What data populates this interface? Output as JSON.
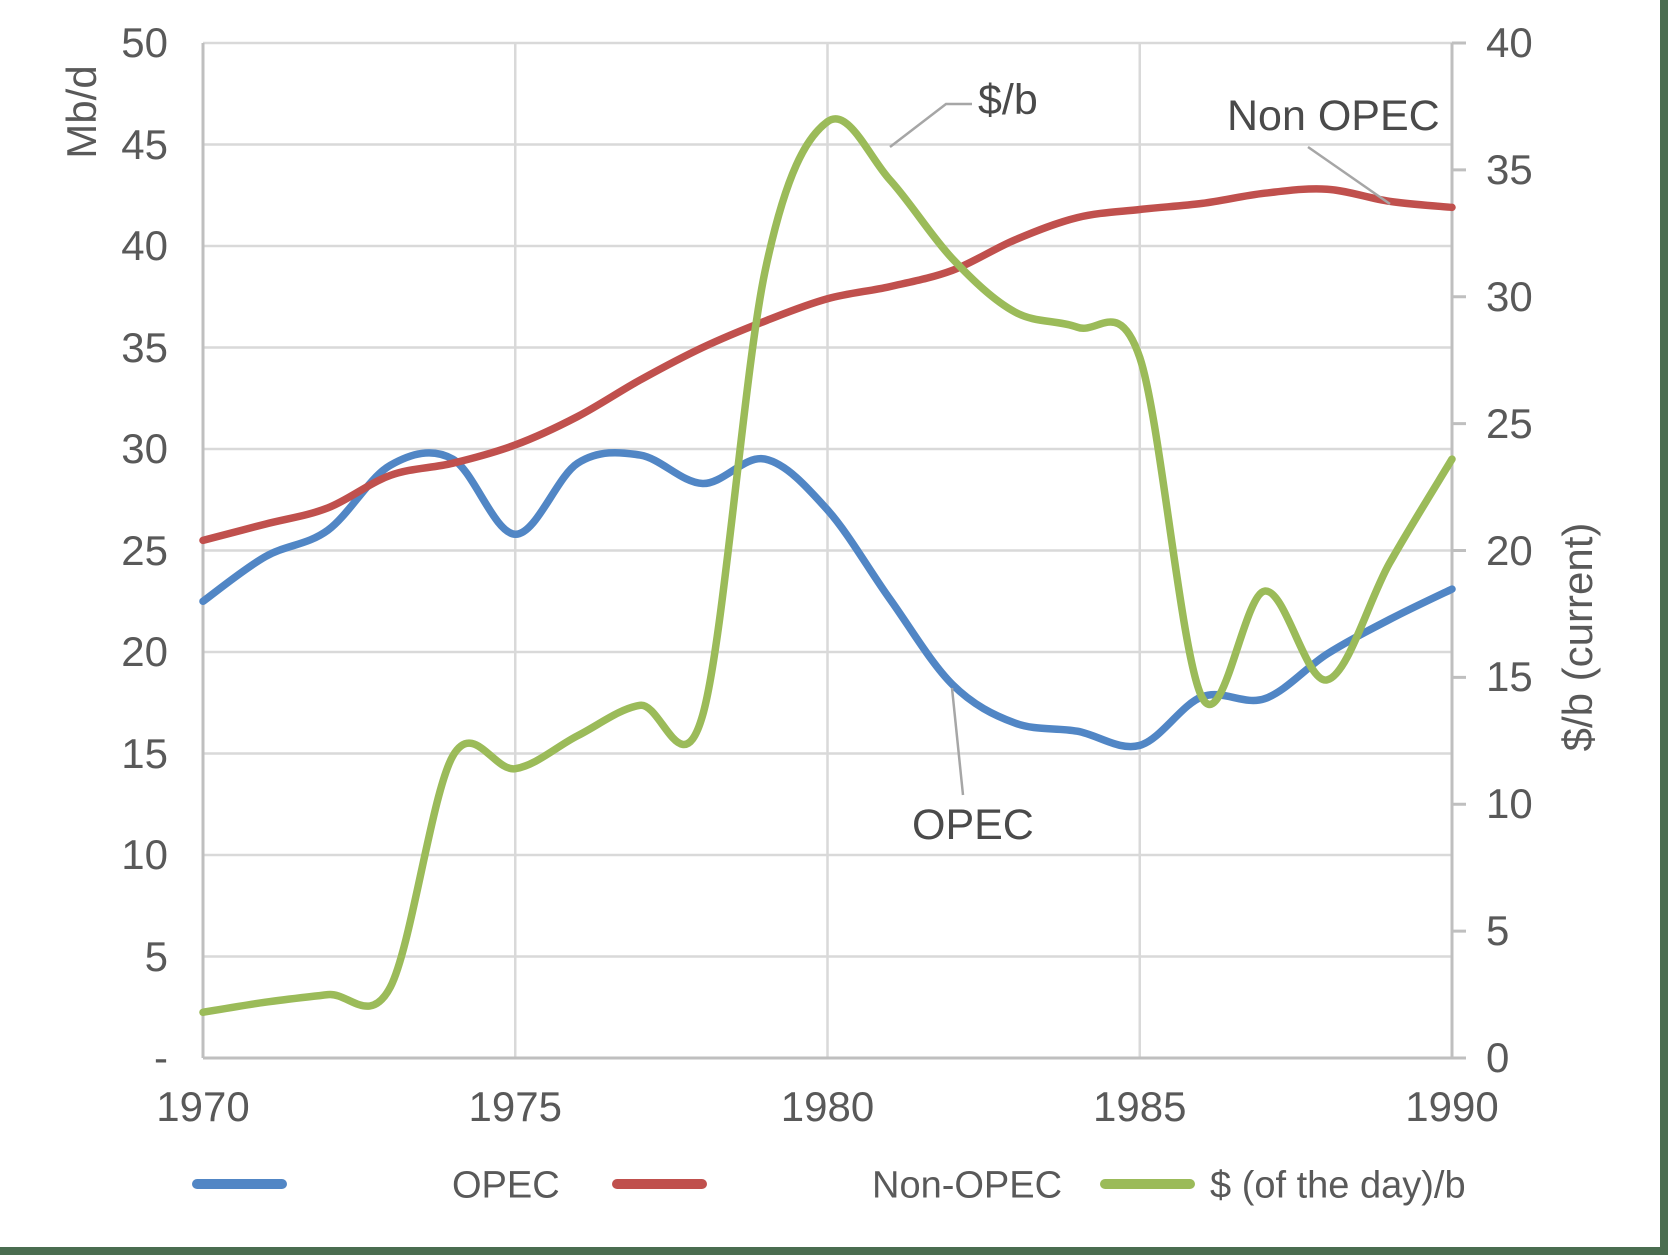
{
  "colors": {
    "grid": "#d9d9d9",
    "axis": "#bfbfbf",
    "text": "#595959",
    "leader": "#a6a6a6",
    "page_border": "#4a6d50",
    "opec": "#5186c5",
    "non_opec": "#c0504d",
    "price": "#9bbb59"
  },
  "axes": {
    "left": {
      "title": "Mb/d",
      "ticks": [
        {
          "label": "50",
          "value": 50
        },
        {
          "label": "45",
          "value": 45
        },
        {
          "label": "40",
          "value": 40
        },
        {
          "label": "35",
          "value": 35
        },
        {
          "label": "30",
          "value": 30
        },
        {
          "label": "25",
          "value": 25
        },
        {
          "label": "20",
          "value": 20
        },
        {
          "label": "15",
          "value": 15
        },
        {
          "label": "10",
          "value": 10
        },
        {
          "label": "5",
          "value": 5
        },
        {
          "label": "-",
          "value": 0
        }
      ]
    },
    "right": {
      "title": "$/b (current)",
      "ticks": [
        {
          "label": "40",
          "value": 40
        },
        {
          "label": "35",
          "value": 35
        },
        {
          "label": "30",
          "value": 30
        },
        {
          "label": "25",
          "value": 25
        },
        {
          "label": "20",
          "value": 20
        },
        {
          "label": "15",
          "value": 15
        },
        {
          "label": "10",
          "value": 10
        },
        {
          "label": "5",
          "value": 5
        },
        {
          "label": "0",
          "value": 0
        }
      ]
    },
    "x": {
      "ticks": [
        {
          "label": "1970",
          "value": 1970
        },
        {
          "label": "1975",
          "value": 1975
        },
        {
          "label": "1980",
          "value": 1980
        },
        {
          "label": "1985",
          "value": 1985
        },
        {
          "label": "1990",
          "value": 1990
        }
      ]
    }
  },
  "legend": {
    "items": [
      {
        "label": "OPEC",
        "color": "#5186c5"
      },
      {
        "label": "Non-OPEC",
        "color": "#c0504d"
      },
      {
        "label": "$ (of the day)/b",
        "color": "#9bbb59"
      }
    ]
  },
  "annotations": [
    {
      "text": "$/b"
    },
    {
      "text": "Non OPEC"
    },
    {
      "text": "OPEC"
    }
  ],
  "chart_data": {
    "type": "line",
    "title": "",
    "x": [
      1970,
      1971,
      1972,
      1973,
      1974,
      1975,
      1976,
      1977,
      1978,
      1979,
      1980,
      1981,
      1982,
      1983,
      1984,
      1985,
      1986,
      1987,
      1988,
      1989,
      1990
    ],
    "left_ylabel": "Mb/d",
    "right_ylabel": "$/b (current)",
    "left_ylim": [
      0,
      50
    ],
    "right_ylim": [
      0,
      40
    ],
    "xlim": [
      1970,
      1990
    ],
    "grid": true,
    "legend_position": "bottom",
    "series": [
      {
        "name": "OPEC",
        "axis": "left",
        "color": "#5186c5",
        "values": [
          22.5,
          24.7,
          26.0,
          29.2,
          29.5,
          25.8,
          29.3,
          29.7,
          28.3,
          29.5,
          27.0,
          22.6,
          18.4,
          16.5,
          16.1,
          15.4,
          17.8,
          17.7,
          19.9,
          21.6,
          23.1
        ]
      },
      {
        "name": "Non-OPEC",
        "axis": "left",
        "color": "#c0504d",
        "values": [
          25.5,
          26.3,
          27.1,
          28.7,
          29.3,
          30.2,
          31.6,
          33.4,
          35.0,
          36.3,
          37.4,
          38.0,
          38.8,
          40.3,
          41.4,
          41.8,
          42.1,
          42.6,
          42.8,
          42.2,
          41.9
        ]
      },
      {
        "name": "$ (of the day)/b",
        "axis": "right",
        "color": "#9bbb59",
        "values": [
          1.8,
          2.2,
          2.5,
          2.8,
          11.9,
          11.4,
          12.7,
          13.9,
          13.5,
          31.0,
          36.9,
          34.6,
          31.5,
          29.4,
          28.8,
          27.6,
          14.2,
          18.4,
          14.9,
          19.5,
          23.6
        ]
      }
    ]
  }
}
